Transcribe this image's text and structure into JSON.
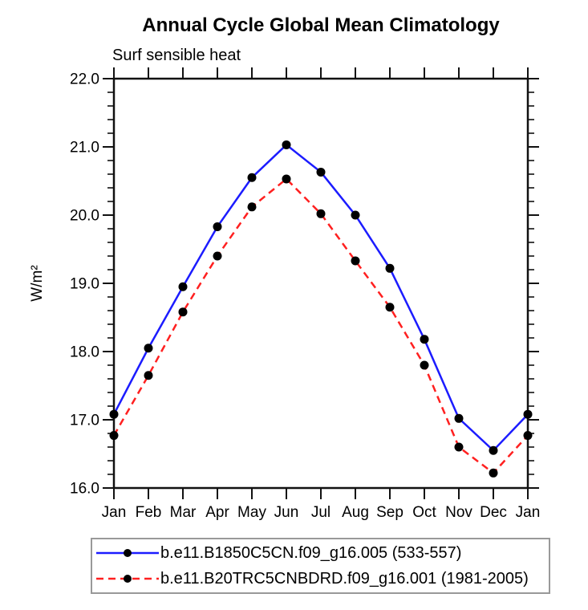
{
  "chart_data": {
    "type": "line",
    "title": "Annual Cycle Global Mean Climatology",
    "subtitle": "Surf sensible heat",
    "ylabel": "W/m²",
    "xlabel": "",
    "ylim": [
      16.0,
      22.0
    ],
    "ytick_major_step": 1.0,
    "ytick_minor_step": 0.2,
    "ytick_labels": [
      "16.0",
      "17.0",
      "18.0",
      "19.0",
      "20.0",
      "21.0",
      "22.0"
    ],
    "grid": false,
    "legend_position": "bottom",
    "axis_color": "#111111",
    "marker_color": "#000000",
    "categories": [
      "Jan",
      "Feb",
      "Mar",
      "Apr",
      "May",
      "Jun",
      "Jul",
      "Aug",
      "Sep",
      "Oct",
      "Nov",
      "Dec",
      "Jan"
    ],
    "series": [
      {
        "name": "b.e11.B1850C5CN.f09_g16.005 (533-557)",
        "color": "#1c1cff",
        "line_style": "solid",
        "marker": "circle",
        "values": [
          17.08,
          18.05,
          18.95,
          19.83,
          20.55,
          21.03,
          20.63,
          20.0,
          19.22,
          18.18,
          17.02,
          16.55,
          17.08
        ]
      },
      {
        "name": "b.e11.B20TRC5CNBDRD.f09_g16.001 (1981-2005)",
        "color": "#ff2020",
        "line_style": "dashed",
        "marker": "circle",
        "values": [
          16.77,
          17.65,
          18.58,
          19.4,
          20.12,
          20.53,
          20.02,
          19.33,
          18.65,
          17.8,
          16.6,
          16.22,
          16.77
        ]
      }
    ]
  }
}
